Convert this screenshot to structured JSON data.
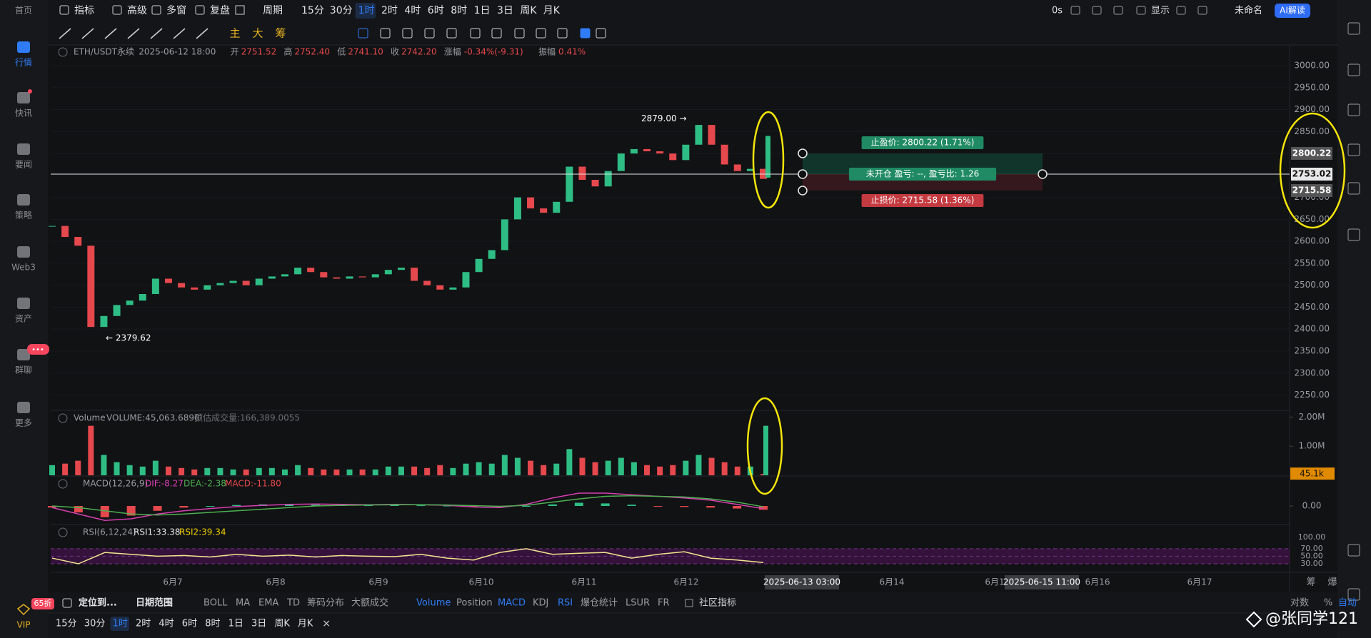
{
  "sidebar": {
    "items": [
      "首页",
      "行情",
      "快讯",
      "要闻",
      "策略",
      "Web3",
      "资产",
      "群聊",
      "更多"
    ],
    "active": 1,
    "chat_badge": "•••",
    "vip": "VIP",
    "vip_badge": "65折"
  },
  "toolbar": {
    "tools": [
      "指标",
      "高级",
      "多窗",
      "复盘"
    ],
    "period_menu": "周期",
    "periods": [
      "15分",
      "30分",
      "1时",
      "2时",
      "4时",
      "6时",
      "8时",
      "1日",
      "3日",
      "周K",
      "月K"
    ],
    "active_period": 2,
    "right": [
      "0s",
      "显示",
      "未命名"
    ],
    "ai": "AI解读"
  },
  "draw_tools": [
    "主",
    "大",
    "筹"
  ],
  "header": {
    "symbol": "ETH/USDT永续",
    "time": "2025-06-12 18:00",
    "fields": [
      {
        "label": "开",
        "value": "2751.52"
      },
      {
        "label": "高",
        "value": "2752.40"
      },
      {
        "label": "低",
        "value": "2741.10"
      },
      {
        "label": "收",
        "value": "2742.20"
      },
      {
        "label": "涨幅",
        "value": "-0.34%(-9.31)"
      },
      {
        "label": "振幅",
        "value": "0.41%"
      }
    ]
  },
  "chart_data": {
    "type": "candlestick",
    "up_color": "#2ebd85",
    "down_color": "#e5484d",
    "ylim": [
      2220,
      3030
    ],
    "yticks": [
      {
        "value": 3000,
        "label": "3000.00"
      },
      {
        "value": 2950,
        "label": "2950.00"
      },
      {
        "value": 2900,
        "label": "2900.00"
      },
      {
        "value": 2850,
        "label": "2850.00"
      },
      {
        "value": 2800,
        "label": "2800.00"
      },
      {
        "value": 2750,
        "label": "2750.00"
      },
      {
        "value": 2700,
        "label": "2700.00"
      },
      {
        "value": 2650,
        "label": "2650.00"
      },
      {
        "value": 2600,
        "label": "2600.00"
      },
      {
        "value": 2550,
        "label": "2550.00"
      },
      {
        "value": 2500,
        "label": "2500.00"
      },
      {
        "value": 2450,
        "label": "2450.00"
      },
      {
        "value": 2400,
        "label": "2400.00"
      },
      {
        "value": 2350,
        "label": "2350.00"
      },
      {
        "value": 2300,
        "label": "2300.00"
      },
      {
        "value": 2250,
        "label": "2250.00"
      }
    ],
    "close": [
      2635,
      2610,
      2590,
      2405,
      2430,
      2455,
      2465,
      2480,
      2515,
      2505,
      2495,
      2490,
      2500,
      2505,
      2510,
      2500,
      2515,
      2520,
      2525,
      2540,
      2530,
      2518,
      2515,
      2520,
      2518,
      2525,
      2535,
      2540,
      2510,
      2500,
      2490,
      2495,
      2530,
      2560,
      2580,
      2650,
      2700,
      2675,
      2665,
      2690,
      2770,
      2740,
      2725,
      2760,
      2800,
      2810,
      2805,
      2800,
      2785,
      2820,
      2865,
      2820,
      2775,
      2760,
      2765,
      2742.2
    ],
    "highlight_candle": [
      2745,
      2840
    ],
    "high_mark": {
      "value": 2879,
      "label": "2879.00 →"
    },
    "low_mark": {
      "value": 2379.62,
      "label": "← 2379.62"
    },
    "position": {
      "take_profit": 2800.22,
      "entry": 2753.02,
      "stop_loss": 2715.58,
      "tp_label": "止盈价: 2800.22 (1.71%)",
      "mid_label": "未开仓 盈亏: --, 盈亏比: 1.26",
      "sl_label": "止损价: 2715.58 (1.36%)"
    },
    "days": [
      "6月7",
      "6月8",
      "6月9",
      "6月10",
      "6月11",
      "6月12",
      "6月14",
      "6月1",
      "6月16",
      "6月17"
    ],
    "crosshair_times": [
      "2025-06-13 03:00",
      "2025-06-15 11:00"
    ],
    "axis_corner": [
      "筹",
      "爆"
    ]
  },
  "volume": {
    "title": "Volume",
    "value_text": "VOLUME:45,063.6890",
    "estimate_text": "预估成交量:166,389.0055",
    "yticks": [
      {
        "value": 2000000,
        "label": "2.00M"
      },
      {
        "value": 1000000,
        "label": "1.00M"
      }
    ],
    "current": {
      "value": 45063.689,
      "label": "45.1k"
    },
    "values": [
      350000,
      400000,
      500000,
      1700000,
      700000,
      450000,
      350000,
      300000,
      500000,
      300000,
      250000,
      200000,
      250000,
      250000,
      200000,
      200000,
      250000,
      250000,
      200000,
      350000,
      250000,
      200000,
      200000,
      200000,
      200000,
      200000,
      300000,
      300000,
      300000,
      250000,
      350000,
      250000,
      400000,
      450000,
      400000,
      700000,
      600000,
      500000,
      350000,
      400000,
      900000,
      600000,
      450000,
      500000,
      600000,
      450000,
      350000,
      300000,
      350000,
      500000,
      700000,
      600000,
      450000,
      300000,
      300000,
      45063.689
    ],
    "highlight": 1700000
  },
  "macd": {
    "title": "MACD(12,26,9)",
    "dif_text": "DIF:-8.27",
    "dea_text": "DEA:-2.38",
    "macd_text": "MACD:-11.80",
    "yticks": [
      {
        "value": 0,
        "label": "0.00"
      }
    ],
    "hist": [
      -5,
      -20,
      -35,
      -30,
      -15,
      -5,
      0,
      3,
      5,
      6,
      4,
      3,
      2,
      3,
      2,
      1,
      -2,
      -3,
      0,
      5,
      10,
      8,
      4,
      -1,
      -3,
      -5,
      -8,
      -11.8
    ],
    "dif": [
      -5,
      -25,
      -45,
      -40,
      -25,
      -15,
      -8,
      -2,
      2,
      5,
      6,
      5,
      4,
      5,
      4,
      2,
      -3,
      -5,
      5,
      25,
      40,
      40,
      35,
      30,
      25,
      18,
      5,
      -8.27
    ],
    "dea": [
      0,
      -5,
      -15,
      -25,
      -28,
      -25,
      -20,
      -15,
      -10,
      -5,
      0,
      2,
      3,
      4,
      4,
      3,
      1,
      -1,
      2,
      12,
      22,
      30,
      32,
      30,
      28,
      22,
      12,
      -2.38
    ]
  },
  "rsi": {
    "title": "RSI(6,12,24)",
    "rsi1_text": "RSI1:33.38",
    "rsi2_text": "RSI2:39.34",
    "yticks": [
      {
        "value": 100,
        "label": "100.00"
      },
      {
        "value": 70,
        "label": "70.00"
      },
      {
        "value": 50,
        "label": "50.00"
      },
      {
        "value": 30,
        "label": "30.00"
      }
    ],
    "band": [
      30,
      70
    ],
    "values": [
      45,
      30,
      60,
      55,
      50,
      52,
      48,
      55,
      50,
      53,
      48,
      52,
      50,
      49,
      55,
      45,
      40,
      60,
      70,
      55,
      58,
      60,
      45,
      55,
      62,
      45,
      40,
      33.38
    ]
  },
  "bottom": {
    "locate": "定位到...",
    "range": "日期范围",
    "main_indicators": [
      "BOLL",
      "MA",
      "EMA",
      "TD",
      "筹码分布",
      "大额成交"
    ],
    "sub_indicators": [
      "Volume",
      "Position",
      "MACD",
      "KDJ",
      "RSI",
      "爆仓统计",
      "LSUR",
      "FR"
    ],
    "active_sub": [
      0,
      2,
      4
    ],
    "community": "社区指标",
    "scale": [
      "对数",
      "%",
      "自动"
    ],
    "periods": [
      "15分",
      "30分",
      "1时",
      "2时",
      "4时",
      "6时",
      "8时",
      "1日",
      "3日",
      "周K",
      "月K"
    ],
    "active_period": 2,
    "close": "×"
  },
  "watermark": "@张同学121"
}
